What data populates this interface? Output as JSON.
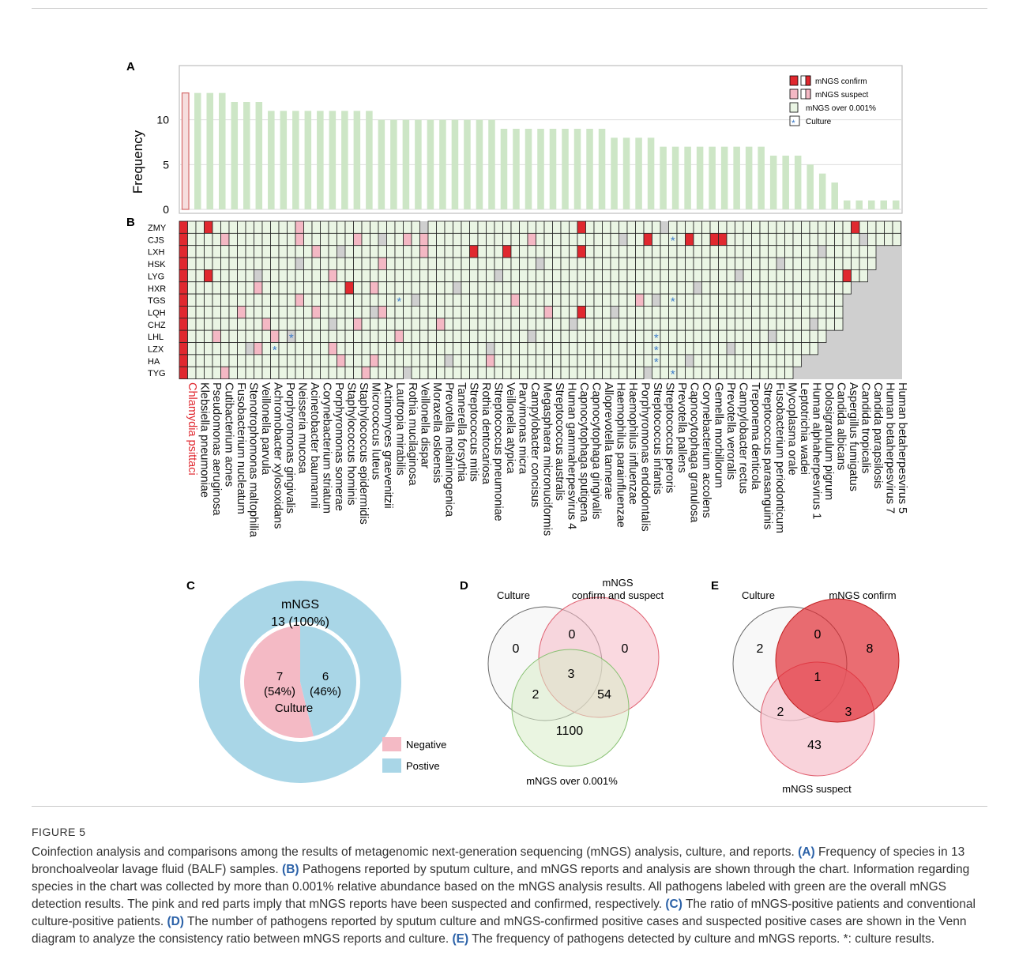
{
  "panel_labels": {
    "a": "A",
    "b": "B",
    "c": "C",
    "d": "D",
    "e": "E"
  },
  "chart_data": [
    {
      "panel": "A",
      "type": "bar",
      "ylabel": "Frequency",
      "ylim": [
        0,
        15
      ],
      "yticks": [
        0,
        5,
        10
      ],
      "grid": true,
      "legend_position": "top-right",
      "categories": [
        "Chlamydia psittaci",
        "Klebsiella pneumoniae",
        "Pseudomonas aeruginosa",
        "Cutibacterium acnes",
        "Fusobacterium nucleatum",
        "Stenotrophomonas maltophilia",
        "Veillonella parvula",
        "Achromobacter xylosoxidans",
        "Porphyromonas gingivalis",
        "Neisseria mucosa",
        "Acinetobacter baumannii",
        "Corynebacterium striatum",
        "Porphyromonas somerae",
        "Staphylococcus hominis",
        "Staphylococcus epidermidis",
        "Micrococcus luteus",
        "Actinomyces graevenitzii",
        "Lautropia mirabilis",
        "Rothia mucilaginosa",
        "Veillonella dispar",
        "Moraxella osloensis",
        "Prevotella melaninogenica",
        "Tannerella forsythia",
        "Streptococcus mitis",
        "Rothia dentocariosa",
        "Streptococcus pneumoniae",
        "Veillonella atypica",
        "Parvimonas micra",
        "Campylobacter concisus",
        "Megasphaera micronuciformis",
        "Streptococcus australis",
        "Human gammaherpesvirus 4",
        "Capnocytophaga sputigena",
        "Capnocytophaga gingivalis",
        "Alloprevotella tannerae",
        "Haemophilus parainfluenzae",
        "Haemophilus influenzae",
        "Porphyromonas endodontalis",
        "Streptococcus infantis",
        "Streptococcus peroris",
        "Prevotella pallens",
        "Capnocytophaga granulosa",
        "Corynebacterium accolens",
        "Gemella morbillorum",
        "Prevotella veroralis",
        "Campylobacter rectus",
        "Treponema denticola",
        "Streptococcus parasanguinis",
        "Fusobacterium periodonticum",
        "Mycoplasma orale",
        "Leptotrichia wadei",
        "Human alphaherpesvirus 1",
        "Dolosigranulum pigrum",
        "Candida albicans",
        "Aspergillus fumigatus",
        "Candida tropicalis",
        "Candida parapsilosis",
        "Human betaherpesvirus 7",
        "Human betaherpesvirus 5"
      ],
      "values": [
        13,
        13,
        13,
        13,
        12,
        12,
        12,
        11,
        11,
        11,
        11,
        11,
        11,
        11,
        11,
        11,
        10,
        10,
        10,
        10,
        10,
        10,
        10,
        10,
        10,
        10,
        9,
        9,
        9,
        9,
        9,
        9,
        9,
        9,
        9,
        8,
        8,
        8,
        8,
        7,
        7,
        7,
        7,
        7,
        7,
        7,
        7,
        7,
        6,
        6,
        6,
        5,
        4,
        3,
        1,
        1,
        1,
        1,
        1
      ],
      "highlight_first": true,
      "highlight_color": "#e8a3a3",
      "bar_color": "#cde6c6",
      "legend": [
        "mNGS confirm",
        "mNGS suspect",
        "mNGS over 0.001%",
        "Culture"
      ]
    },
    {
      "panel": "B",
      "type": "heatmap",
      "rows": [
        "ZMY",
        "CJS",
        "LXH",
        "HSK",
        "LYG",
        "HXR",
        "TGS",
        "LQH",
        "CHZ",
        "LHL",
        "LZX",
        "HA",
        "TYG"
      ],
      "columns_ref": "same as panel A categories",
      "first_row_label_color": "#e0282f",
      "cell_colors": {
        "detected": "#eaf5e4",
        "suspect": "#f4b8c4",
        "confirm": "#e0282f",
        "absent": "#cfcfcf"
      },
      "extent": [
        59,
        59,
        57,
        57,
        56,
        55,
        54,
        54,
        54,
        53,
        52,
        51,
        50
      ],
      "confirm_cells": [
        [
          0,
          0
        ],
        [
          1,
          0
        ],
        [
          2,
          0
        ],
        [
          3,
          0
        ],
        [
          4,
          0
        ],
        [
          5,
          0
        ],
        [
          6,
          0
        ],
        [
          7,
          0
        ],
        [
          8,
          0
        ],
        [
          9,
          0
        ],
        [
          10,
          0
        ],
        [
          11,
          0
        ],
        [
          12,
          0
        ],
        [
          0,
          3
        ],
        [
          4,
          3
        ],
        [
          5,
          20
        ],
        [
          2,
          35
        ],
        [
          2,
          39
        ],
        [
          0,
          48
        ],
        [
          2,
          48
        ],
        [
          7,
          48
        ],
        [
          1,
          56
        ],
        [
          1,
          61
        ],
        [
          1,
          64
        ],
        [
          1,
          65
        ],
        [
          4,
          80
        ],
        [
          0,
          81
        ]
      ],
      "suspect_cells": [
        [
          0,
          14
        ],
        [
          1,
          5
        ],
        [
          1,
          14
        ],
        [
          1,
          21
        ],
        [
          1,
          27
        ],
        [
          1,
          29
        ],
        [
          1,
          42
        ],
        [
          2,
          16
        ],
        [
          2,
          29
        ],
        [
          3,
          24
        ],
        [
          4,
          18
        ],
        [
          5,
          9
        ],
        [
          5,
          23
        ],
        [
          6,
          14
        ],
        [
          6,
          40
        ],
        [
          6,
          55
        ],
        [
          7,
          7
        ],
        [
          7,
          16
        ],
        [
          7,
          24
        ],
        [
          7,
          44
        ],
        [
          8,
          10
        ],
        [
          8,
          21
        ],
        [
          8,
          31
        ],
        [
          9,
          4
        ],
        [
          9,
          11
        ],
        [
          9,
          26
        ],
        [
          10,
          9
        ],
        [
          10,
          18
        ],
        [
          11,
          19
        ],
        [
          11,
          23
        ],
        [
          11,
          37
        ],
        [
          12,
          5
        ],
        [
          12,
          22
        ]
      ],
      "culture_cells": [
        [
          1,
          59
        ],
        [
          6,
          26
        ],
        [
          6,
          59
        ],
        [
          9,
          13
        ],
        [
          10,
          11
        ],
        [
          9,
          57
        ],
        [
          10,
          57
        ],
        [
          11,
          57
        ],
        [
          12,
          59
        ]
      ]
    },
    {
      "panel": "C",
      "type": "pie",
      "outer": {
        "title": "mNGS",
        "label": "13 (100%)",
        "color": "#a9d6e7"
      },
      "inner_title": "Culture",
      "slices": [
        {
          "name": "Negative",
          "value": 7,
          "label_count": "7",
          "label_pct": "(54%)",
          "color": "#f4bac5"
        },
        {
          "name": "Postive",
          "value": 6,
          "label_count": "6",
          "label_pct": "(46%)",
          "color": "#a9d6e7"
        }
      ],
      "legend": [
        "Negative",
        "Postive"
      ]
    },
    {
      "panel": "D",
      "type": "venn",
      "sets": [
        "Culture",
        "mNGS\nconfirm and suspect",
        "mNGS over 0.001%"
      ],
      "set_labels": {
        "culture": "Culture",
        "mngs_top": "mNGS",
        "mngs_bottom": "confirm and suspect",
        "over": "mNGS over 0.001%"
      },
      "regions": {
        "culture_only": "0",
        "culture_mngs": "0",
        "mngs_only": "0",
        "all_three": "3",
        "culture_over": "2",
        "mngs_over": "54",
        "over_only": "1100"
      }
    },
    {
      "panel": "E",
      "type": "venn",
      "sets": [
        "Culture",
        "mNGS confirm",
        "mNGS suspect"
      ],
      "regions": {
        "culture_only": "2",
        "culture_confirm": "0",
        "confirm_only": "8",
        "all_three": "1",
        "culture_suspect": "2",
        "confirm_suspect": "3",
        "suspect_only": "43"
      }
    }
  ],
  "caption": {
    "figure_label": "FIGURE 5",
    "intro": "Coinfection analysis and comparisons among the results of metagenomic next-generation sequencing (mNGS) analysis, culture, and reports.",
    "a_label": "(A)",
    "a_text": " Frequency of species in 13 bronchoalveolar lavage fluid (BALF) samples. ",
    "b_label": "(B)",
    "b_text": " Pathogens reported by sputum culture, and mNGS reports and analysis are shown through the chart. Information regarding species in the chart was collected by more than 0.001% relative abundance based on the mNGS analysis results. All pathogens labeled with green are the overall mNGS detection results. The pink and red parts imply that mNGS reports have been suspected and confirmed, respectively. ",
    "c_label": "(C)",
    "c_text": " The ratio of mNGS-positive patients and conventional culture-positive patients. ",
    "d_label": "(D)",
    "d_text": " The number of pathogens reported by sputum culture and mNGS-confirmed positive cases and suspected positive cases are shown in the Venn diagram to analyze the consistency ratio between mNGS reports and culture. ",
    "e_label": "(E)",
    "e_text": " The frequency of pathogens detected by culture and mNGS reports. *: culture results."
  }
}
